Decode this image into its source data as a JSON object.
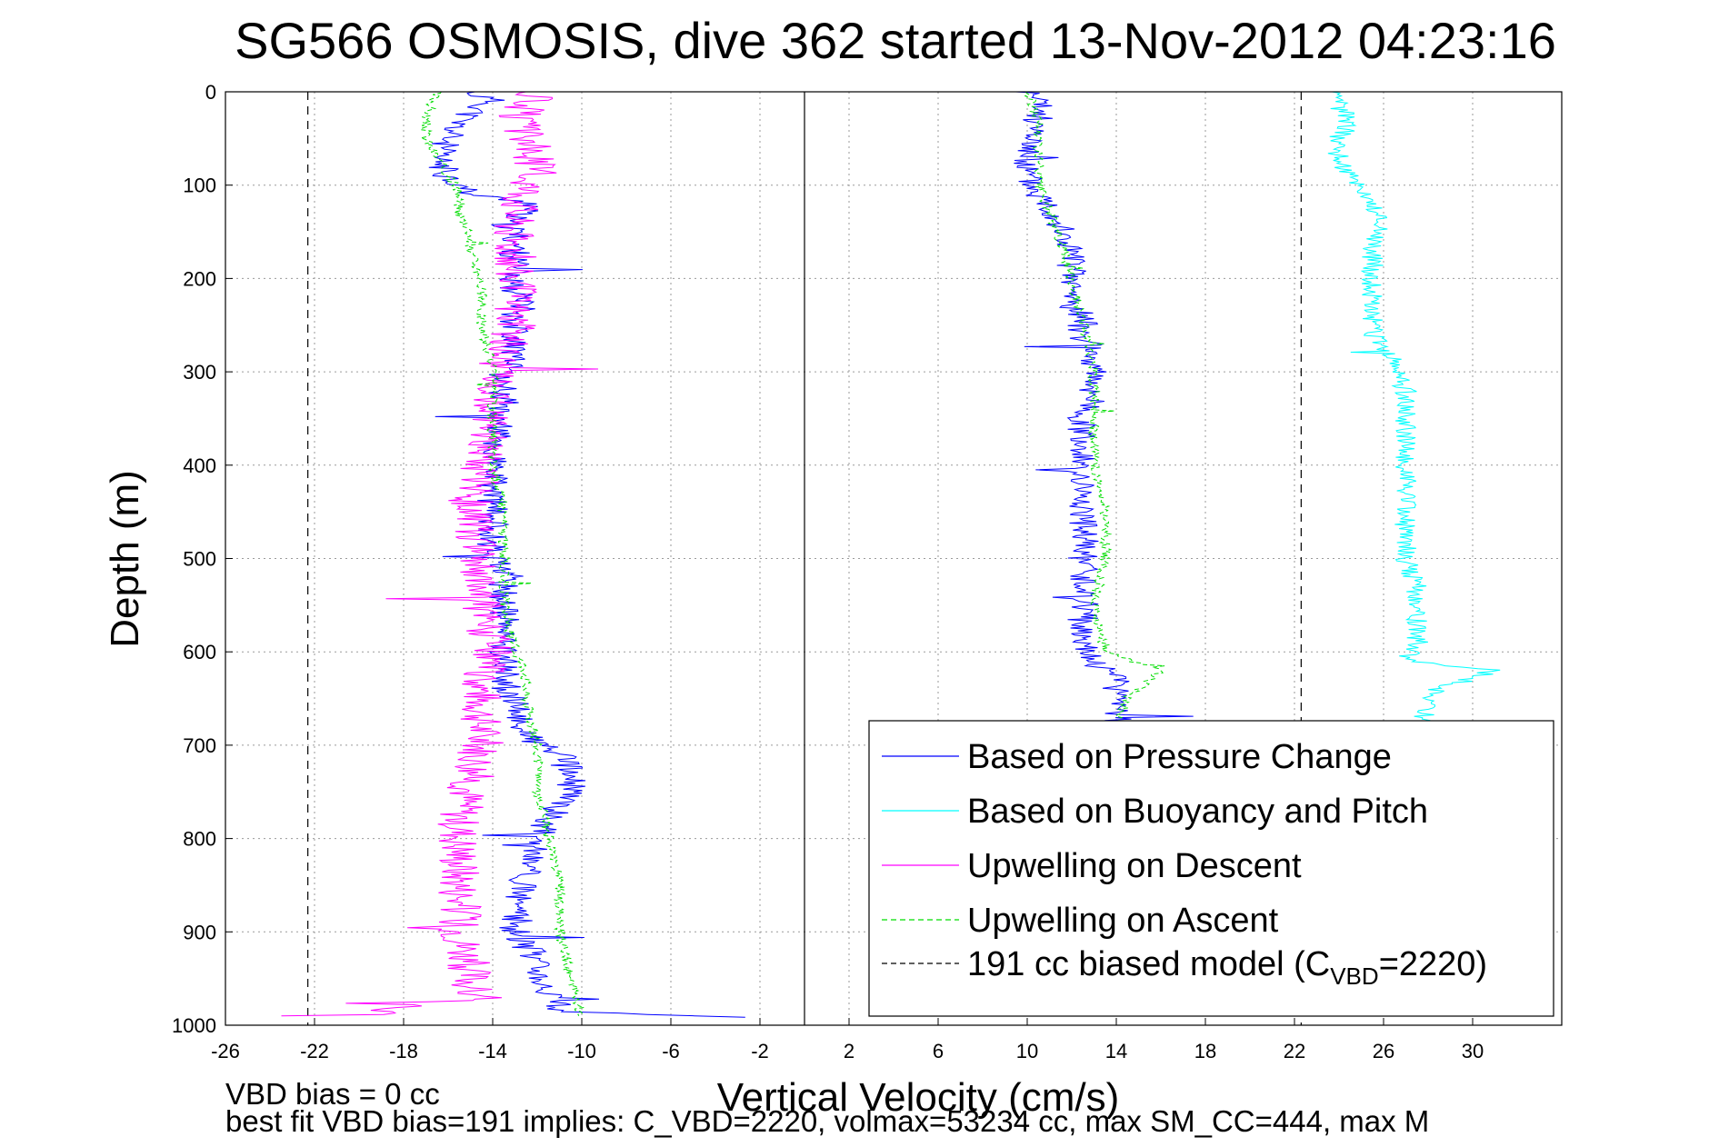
{
  "chart_data": {
    "type": "line",
    "title": "SG566 OSMOSIS, dive 362 started 13-Nov-2012 04:23:16",
    "xlabel": "Vertical Velocity (cm/s)",
    "ylabel": "Depth (m)",
    "xlim": [
      -26,
      34
    ],
    "ylim": [
      0,
      1000
    ],
    "y_reversed": true,
    "grid": true,
    "x_ticks": [
      "-26",
      "-22",
      "-18",
      "-14",
      "-10",
      "-6",
      "-2",
      "2",
      "6",
      "10",
      "14",
      "18",
      "22",
      "26",
      "30"
    ],
    "y_ticks": [
      "0",
      "100",
      "200",
      "300",
      "400",
      "500",
      "600",
      "700",
      "800",
      "900",
      "1000"
    ],
    "x_tick_values": [
      -26,
      -22,
      -18,
      -14,
      -10,
      -6,
      -2,
      2,
      6,
      10,
      14,
      18,
      22,
      26,
      30
    ],
    "y_tick_values": [
      0,
      100,
      200,
      300,
      400,
      500,
      600,
      700,
      800,
      900,
      1000
    ],
    "legend_position": "bottom-right",
    "legend": [
      {
        "label": "Based on Pressure Change",
        "color": "#0000ff",
        "dash": "solid"
      },
      {
        "label": "Based on Buoyancy and Pitch",
        "color": "#00ffff",
        "dash": "solid"
      },
      {
        "label": "Upwelling on Descent",
        "color": "#ff00ff",
        "dash": "solid"
      },
      {
        "label": "Upwelling on Ascent",
        "color": "#00dd00",
        "dash": "dashed"
      },
      {
        "label": "191 cc biased model (C",
        "sub": "VBD",
        "suffix": "=2220)",
        "color": "#000000",
        "dash": "dashed"
      }
    ],
    "zero_line_x": 0,
    "model_lines_x": [
      -22.3,
      22.3
    ],
    "series": [
      {
        "name": "Based on Pressure Change",
        "color": "#0000ff",
        "depth": [
          0,
          10,
          30,
          50,
          70,
          90,
          110,
          120,
          140,
          150,
          170,
          190,
          210,
          230,
          240,
          260,
          280,
          300,
          320,
          350,
          380,
          400,
          430,
          460,
          490,
          520,
          550,
          580,
          610,
          630,
          660,
          690,
          710,
          730,
          750,
          780,
          810,
          840,
          870,
          900,
          930,
          960,
          985,
          992
        ],
        "descent": [
          -15.0,
          -14.0,
          -15.5,
          -16.0,
          -16.5,
          -16.0,
          -15.0,
          -12.0,
          -13.5,
          -13.0,
          -13.0,
          -13.0,
          -13.0,
          -12.5,
          -13.0,
          -13.0,
          -13.0,
          -13.5,
          -13.5,
          -13.5,
          -14.0,
          -14.0,
          -14.0,
          -14.0,
          -14.0,
          -13.5,
          -13.5,
          -13.5,
          -13.5,
          -13.5,
          -13.0,
          -12.5,
          -11.0,
          -10.5,
          -10.5,
          -11.5,
          -12.0,
          -12.5,
          -13.0,
          -13.0,
          -12.0,
          -11.5,
          -11.0,
          -2.0
        ],
        "ascent": [
          10.0,
          10.5,
          10.5,
          10.0,
          10.0,
          10.0,
          10.5,
          11.0,
          11.5,
          11.5,
          12.0,
          12.0,
          12.0,
          12.0,
          12.5,
          12.5,
          13.0,
          13.0,
          13.0,
          12.5,
          12.5,
          12.5,
          12.5,
          12.5,
          12.5,
          12.5,
          12.5,
          12.5,
          13.0,
          14.0,
          14.0,
          14.0
        ]
      },
      {
        "name": "Based on Buoyancy and Pitch",
        "color": "#00ffff",
        "depth": [
          0,
          15,
          30,
          50,
          70,
          90,
          100,
          120,
          140,
          170,
          200,
          230,
          260,
          290,
          320,
          350,
          380,
          410,
          440,
          470,
          500,
          530,
          560,
          590,
          610,
          620,
          640,
          660,
          680
        ],
        "values": [
          23.5,
          24.0,
          24.5,
          24.0,
          24.0,
          24.5,
          25.0,
          25.5,
          26.0,
          25.5,
          25.5,
          25.5,
          25.5,
          26.5,
          27.0,
          27.0,
          27.0,
          27.0,
          27.0,
          27.0,
          27.0,
          27.5,
          27.5,
          27.5,
          27.0,
          31.0,
          28.5,
          28.0,
          27.5
        ]
      },
      {
        "name": "Upwelling on Descent",
        "color": "#ff00ff",
        "depth": [
          0,
          15,
          30,
          50,
          80,
          110,
          140,
          160,
          190,
          220,
          250,
          280,
          320,
          360,
          400,
          450,
          500,
          550,
          600,
          630,
          660,
          700,
          740,
          780,
          820,
          860,
          900,
          940,
          970,
          990
        ],
        "values": [
          -12.0,
          -12.5,
          -13.0,
          -12.5,
          -12.0,
          -12.5,
          -13.0,
          -13.0,
          -13.0,
          -13.0,
          -13.0,
          -13.5,
          -14.0,
          -14.0,
          -14.5,
          -15.0,
          -14.5,
          -14.5,
          -14.0,
          -14.5,
          -14.5,
          -14.5,
          -15.0,
          -15.5,
          -15.5,
          -15.5,
          -15.5,
          -15.0,
          -15.0,
          -20.0
        ]
      },
      {
        "name": "Upwelling on Ascent",
        "color": "#00dd00",
        "depth": [
          0,
          30,
          50,
          70,
          90,
          110,
          130,
          150,
          170,
          200,
          250,
          300,
          350,
          400,
          450,
          500,
          550,
          600,
          620,
          650,
          700,
          750,
          800,
          850,
          900,
          950,
          990
        ],
        "descent": [
          -16.5,
          -17.0,
          -17.0,
          -16.5,
          -16.0,
          -15.5,
          -15.5,
          -15.0,
          -15.0,
          -14.5,
          -14.5,
          -14.0,
          -14.0,
          -14.0,
          -13.5,
          -13.5,
          -13.5,
          -13.0,
          -12.5,
          -12.5,
          -12.0,
          -12.0,
          -11.5,
          -11.0,
          -11.0,
          -10.5,
          -10.0
        ],
        "ascent_depth": [
          0,
          30,
          60,
          100,
          130,
          160,
          200,
          250,
          300,
          350,
          400,
          450,
          500,
          550,
          600,
          620,
          650,
          680
        ],
        "ascent": [
          10.0,
          10.5,
          10.5,
          10.5,
          11.0,
          11.5,
          12.0,
          12.5,
          13.0,
          13.0,
          13.0,
          13.5,
          13.5,
          13.0,
          13.5,
          16.0,
          14.5,
          14.0
        ]
      }
    ],
    "footnotes": [
      "VBD bias = 0 cc",
      "best fit VBD bias=191 implies: C_VBD=2220, volmax=53234 cc, max SM_CC=444, max M"
    ]
  }
}
